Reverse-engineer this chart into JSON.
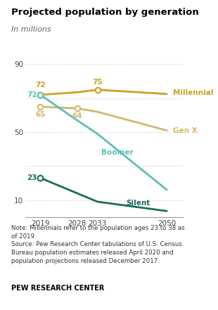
{
  "title": "Projected population by generation",
  "subtitle": "In millions",
  "years": [
    2019,
    2028,
    2033,
    2050
  ],
  "millennial": [
    72,
    73.5,
    75,
    72.5
  ],
  "genx": [
    65,
    64,
    62,
    51
  ],
  "boomer": [
    72,
    57,
    49,
    16
  ],
  "silent": [
    23,
    14,
    9,
    3.5
  ],
  "millennial_color": "#c9a227",
  "genx_color": "#d4b96a",
  "boomer_color": "#5bbfb5",
  "silent_color": "#1a6b5a",
  "dot_years_millennial": [
    2019,
    2033
  ],
  "dot_values_millennial": [
    72,
    75
  ],
  "dot_years_genx": [
    2019,
    2028
  ],
  "dot_values_genx": [
    65,
    64
  ],
  "dot_years_boomer": [
    2019
  ],
  "dot_values_boomer": [
    72
  ],
  "dot_years_silent": [
    2019
  ],
  "dot_values_silent": [
    23
  ],
  "ylim": [
    0,
    95
  ],
  "yticks": [
    10,
    50,
    90
  ],
  "extra_gridlines": [
    30,
    70
  ],
  "xticks": [
    2019,
    2028,
    2033,
    2050
  ],
  "note_text": "Note: Millennials refer to the population ages 23 to 38 as\nof 2019.\nSource: Pew Research Center tabulations of U.S. Census\nBureau population estimates released April 2020 and\npopulation projections released December 2017.",
  "source_label": "PEW RESEARCH CENTER",
  "background_color": "#ffffff",
  "grid_color": "#cccccc",
  "label_millennial": "Millennial",
  "label_genx": "Gen X",
  "label_boomer": "Boomer",
  "label_silent": "Silent"
}
